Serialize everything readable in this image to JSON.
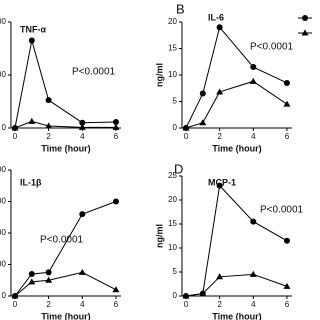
{
  "chart_data": [
    {
      "type": "line",
      "title": "TNF-α",
      "annotation": "P<0.0001",
      "xlabel": "Time (hour)",
      "xlim": [
        -0.2,
        6.3
      ],
      "xticks": [
        0,
        2,
        4,
        6
      ],
      "ylim": [
        0,
        800
      ],
      "yticks": [
        0,
        400,
        800
      ],
      "x": [
        0,
        1,
        2,
        4,
        6
      ],
      "series": [
        {
          "marker": "circle",
          "color": "#000000",
          "values": [
            0,
            660,
            210,
            40,
            45
          ]
        },
        {
          "marker": "triangle",
          "color": "#000000",
          "values": [
            0,
            50,
            15,
            5,
            5
          ]
        }
      ]
    },
    {
      "type": "line",
      "letter": "B",
      "title": "IL-6",
      "annotation": "P<0.0001",
      "xlabel": "Time (hour)",
      "ylabel": "ng/ml",
      "xlim": [
        -0.2,
        6.3
      ],
      "xticks": [
        0,
        2,
        4,
        6
      ],
      "ylim": [
        0,
        20
      ],
      "yticks": [
        0,
        5,
        10,
        15,
        20
      ],
      "x": [
        0,
        1,
        2,
        4,
        6
      ],
      "series": [
        {
          "marker": "circle",
          "color": "#000000",
          "values": [
            0,
            6.5,
            19,
            11.5,
            8.5
          ]
        },
        {
          "marker": "triangle",
          "color": "#000000",
          "values": [
            0,
            1,
            6.8,
            8.8,
            4.5
          ]
        }
      ]
    },
    {
      "type": "line",
      "title": "IL-1β",
      "annotation": "P<0.0001",
      "xlabel": "Time (hour)",
      "xlim": [
        -0.2,
        6.3
      ],
      "xticks": [
        0,
        2,
        4,
        6
      ],
      "ylim": [
        0,
        800
      ],
      "yticks": [
        0,
        200,
        400,
        600,
        800
      ],
      "x": [
        0,
        1,
        2,
        4,
        6
      ],
      "series": [
        {
          "marker": "circle",
          "color": "#000000",
          "values": [
            0,
            140,
            150,
            520,
            600
          ]
        },
        {
          "marker": "triangle",
          "color": "#000000",
          "values": [
            0,
            90,
            100,
            150,
            40
          ]
        }
      ]
    },
    {
      "type": "line",
      "letter": "D",
      "title": "MCP-1",
      "annotation": "P<0.0001",
      "xlabel": "Time (hour)",
      "ylabel": "ng/ml",
      "xlim": [
        -0.2,
        6.3
      ],
      "xticks": [
        0,
        2,
        4,
        6
      ],
      "ylim": [
        0,
        25
      ],
      "yticks": [
        0,
        5,
        10,
        15,
        20,
        25
      ],
      "x": [
        0,
        1,
        2,
        4,
        6
      ],
      "series": [
        {
          "marker": "circle",
          "color": "#000000",
          "values": [
            0,
            0.5,
            23,
            15.5,
            11.5
          ]
        },
        {
          "marker": "triangle",
          "color": "#000000",
          "values": [
            0,
            0.5,
            4,
            4.5,
            2
          ]
        }
      ]
    }
  ]
}
